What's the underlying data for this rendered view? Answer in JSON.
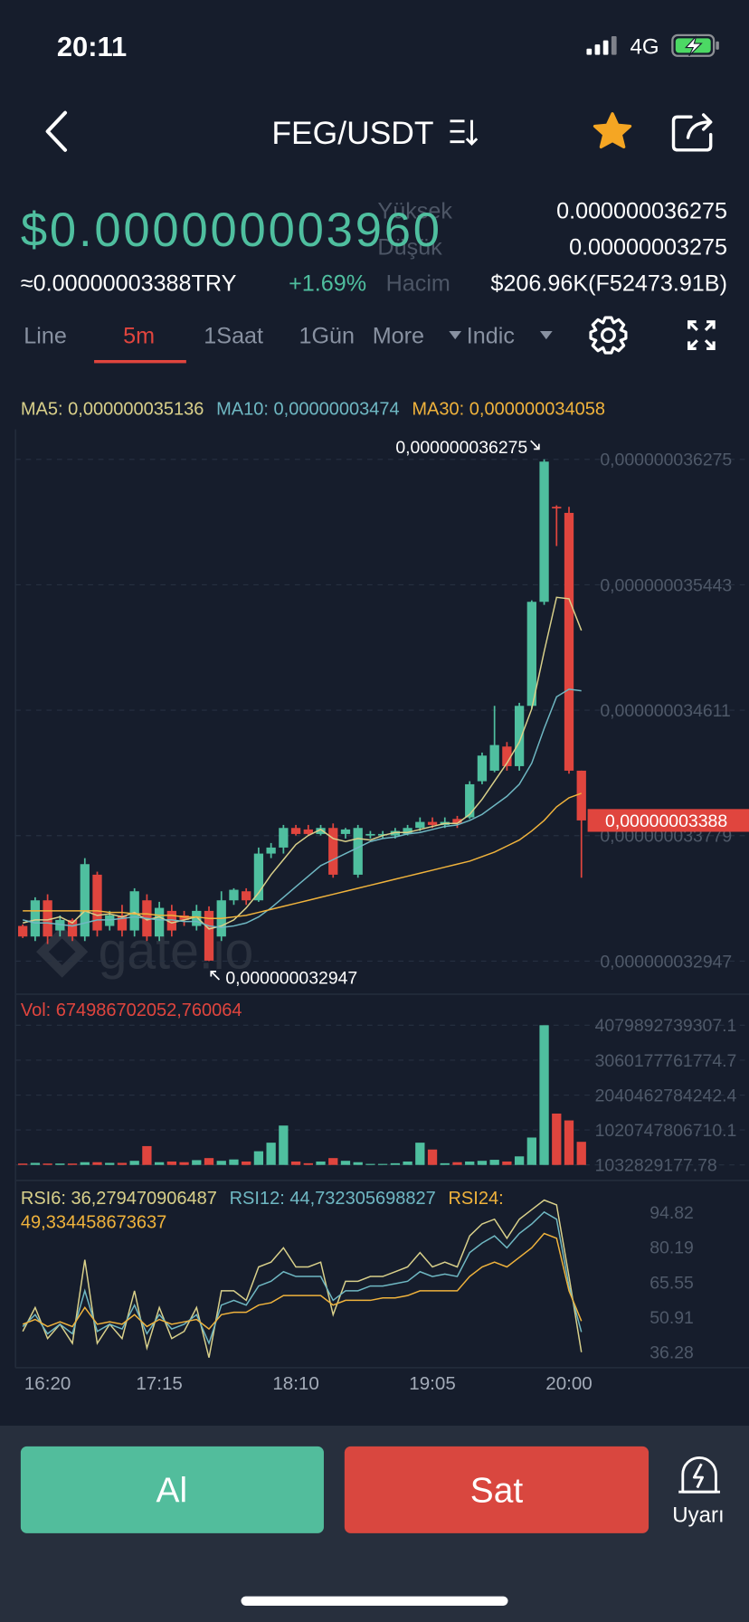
{
  "status_bar": {
    "time": "20:11",
    "network": "4G"
  },
  "header": {
    "pair": "FEG/USDT"
  },
  "ticker": {
    "price": "$0.000000003960",
    "price_try": "≈0.00000003388TRY",
    "change": "+1.69%",
    "stats": [
      {
        "label": "Yüksek",
        "value": "0.000000036275"
      },
      {
        "label": "Düşük",
        "value": "0.00000003275"
      },
      {
        "label": "Hacim",
        "value": "$206.96K(F52473.91B)"
      }
    ]
  },
  "tabs": [
    "Line",
    "5m",
    "1Saat",
    "1Gün",
    "More",
    "Indic"
  ],
  "watermark": "gate.io",
  "chart_data": [
    {
      "type": "candlestick",
      "open": [
        3.318e-08,
        3.311e-08,
        3.335e-08,
        3.315e-08,
        3.322e-08,
        3.311e-08,
        3.352e-08,
        3.318e-08,
        3.325e-08,
        3.315e-08,
        3.335e-08,
        3.311e-08,
        3.328e-08,
        3.325e-08,
        3.318e-08,
        3.328e-08,
        3.311e-08,
        3.335e-08,
        3.341e-08,
        3.335e-08,
        3.366e-08,
        3.37e-08,
        3.383e-08,
        3.382e-08,
        3.379e-08,
        3.383e-08,
        3.379e-08,
        3.352e-08,
        3.378e-08,
        3.378e-08,
        3.378e-08,
        3.379e-08,
        3.383e-08,
        3.387e-08,
        3.385e-08,
        3.389e-08,
        3.39e-08,
        3.414e-08,
        3.421e-08,
        3.437e-08,
        3.424e-08,
        3.464e-08,
        3.533e-08,
        3.596e-08,
        3.592e-08,
        3.421e-08
      ],
      "high": [
        3.319e-08,
        3.337e-08,
        3.339e-08,
        3.325e-08,
        3.323e-08,
        3.363e-08,
        3.354e-08,
        3.328e-08,
        3.332e-08,
        3.343e-08,
        3.339e-08,
        3.334e-08,
        3.332e-08,
        3.328e-08,
        3.332e-08,
        3.331e-08,
        3.341e-08,
        3.343e-08,
        3.343e-08,
        3.37e-08,
        3.373e-08,
        3.385e-08,
        3.385e-08,
        3.385e-08,
        3.385e-08,
        3.386e-08,
        3.383e-08,
        3.385e-08,
        3.381e-08,
        3.381e-08,
        3.383e-08,
        3.385e-08,
        3.39e-08,
        3.39e-08,
        3.39e-08,
        3.391e-08,
        3.414e-08,
        3.433e-08,
        3.464e-08,
        3.44e-08,
        3.466e-08,
        3.534e-08,
        3.6275e-08,
        3.597e-08,
        3.596e-08,
        3.421e-08
      ],
      "low": [
        3.31e-08,
        3.308e-08,
        3.306e-08,
        3.311e-08,
        3.308e-08,
        3.308e-08,
        3.311e-08,
        3.315e-08,
        3.311e-08,
        3.311e-08,
        3.308e-08,
        3.308e-08,
        3.311e-08,
        3.318e-08,
        3.315e-08,
        3.2947e-08,
        3.308e-08,
        3.332e-08,
        3.332e-08,
        3.334e-08,
        3.363e-08,
        3.366e-08,
        3.378e-08,
        3.378e-08,
        3.378e-08,
        3.35e-08,
        3.376e-08,
        3.35e-08,
        3.376e-08,
        3.376e-08,
        3.376e-08,
        3.378e-08,
        3.381e-08,
        3.383e-08,
        3.383e-08,
        3.383e-08,
        3.389e-08,
        3.412e-08,
        3.42e-08,
        3.421e-08,
        3.421e-08,
        3.462e-08,
        3.531e-08,
        3.57e-08,
        3.419e-08,
        3.35e-08
      ],
      "close": [
        3.311e-08,
        3.335e-08,
        3.311e-08,
        3.322e-08,
        3.311e-08,
        3.359e-08,
        3.315e-08,
        3.325e-08,
        3.315e-08,
        3.341e-08,
        3.311e-08,
        3.33e-08,
        3.315e-08,
        3.322e-08,
        3.328e-08,
        3.295e-08,
        3.335e-08,
        3.342e-08,
        3.335e-08,
        3.366e-08,
        3.37e-08,
        3.383e-08,
        3.379e-08,
        3.379e-08,
        3.383e-08,
        3.352e-08,
        3.382e-08,
        3.383e-08,
        3.379e-08,
        3.379e-08,
        3.381e-08,
        3.383e-08,
        3.387e-08,
        3.385e-08,
        3.387e-08,
        3.386e-08,
        3.412e-08,
        3.431e-08,
        3.438e-08,
        3.424e-08,
        3.464e-08,
        3.533e-08,
        3.626e-08,
        3.595e-08,
        3.421e-08,
        3.388e-08
      ],
      "up_color": "#4fbf9f",
      "down_color": "#e0453e",
      "series": [
        {
          "name": "MA5: 0,000000035136",
          "color": "#d9d08a",
          "values": [
            3.32e-08,
            3.322e-08,
            3.322e-08,
            3.324e-08,
            3.32e-08,
            3.328e-08,
            3.325e-08,
            3.326e-08,
            3.324e-08,
            3.327e-08,
            3.322e-08,
            3.324e-08,
            3.32e-08,
            3.322e-08,
            3.324e-08,
            3.316e-08,
            3.318e-08,
            3.322e-08,
            3.33e-08,
            3.34e-08,
            3.352e-08,
            3.362e-08,
            3.372e-08,
            3.378e-08,
            3.382e-08,
            3.376e-08,
            3.374e-08,
            3.376e-08,
            3.375e-08,
            3.378e-08,
            3.38e-08,
            3.38e-08,
            3.382e-08,
            3.384e-08,
            3.386e-08,
            3.386e-08,
            3.392e-08,
            3.402e-08,
            3.414e-08,
            3.426e-08,
            3.44e-08,
            3.462e-08,
            3.5e-08,
            3.536e-08,
            3.535e-08,
            3.514e-08
          ]
        },
        {
          "name": "MA10: 0,00000003474",
          "color": "#6fb8c3",
          "values": [
            3.322e-08,
            3.32e-08,
            3.32e-08,
            3.319e-08,
            3.318e-08,
            3.32e-08,
            3.322e-08,
            3.322e-08,
            3.323e-08,
            3.324e-08,
            3.323e-08,
            3.322e-08,
            3.322e-08,
            3.321e-08,
            3.321e-08,
            3.318e-08,
            3.317e-08,
            3.318e-08,
            3.32e-08,
            3.324e-08,
            3.33e-08,
            3.337e-08,
            3.344e-08,
            3.351e-08,
            3.358e-08,
            3.362e-08,
            3.366e-08,
            3.37e-08,
            3.374e-08,
            3.376e-08,
            3.377e-08,
            3.379e-08,
            3.38e-08,
            3.382e-08,
            3.384e-08,
            3.385e-08,
            3.388e-08,
            3.392e-08,
            3.398e-08,
            3.404e-08,
            3.412e-08,
            3.426e-08,
            3.449e-08,
            3.47e-08,
            3.475e-08,
            3.474e-08
          ]
        },
        {
          "name": "MA30: 0,000000034058",
          "color": "#f0b33c",
          "values": [
            3.328e-08,
            3.328e-08,
            3.328e-08,
            3.328e-08,
            3.328e-08,
            3.328e-08,
            3.328e-08,
            3.327e-08,
            3.327e-08,
            3.326e-08,
            3.326e-08,
            3.325e-08,
            3.325e-08,
            3.324e-08,
            3.324e-08,
            3.323e-08,
            3.323e-08,
            3.324e-08,
            3.325e-08,
            3.327e-08,
            3.329e-08,
            3.331e-08,
            3.333e-08,
            3.335e-08,
            3.337e-08,
            3.339e-08,
            3.341e-08,
            3.343e-08,
            3.345e-08,
            3.347e-08,
            3.349e-08,
            3.351e-08,
            3.353e-08,
            3.355e-08,
            3.357e-08,
            3.359e-08,
            3.361e-08,
            3.364e-08,
            3.367e-08,
            3.371e-08,
            3.375e-08,
            3.381e-08,
            3.388e-08,
            3.397e-08,
            3.403e-08,
            3.406e-08
          ]
        }
      ],
      "ylim": [
        3.2734e-08,
        3.6474e-08
      ],
      "yticks": [
        {
          "value": 3.6275e-08,
          "label": "0,000000036275"
        },
        {
          "value": 3.5443e-08,
          "label": "0,000000035443"
        },
        {
          "value": 3.4611e-08,
          "label": "0,000000034611"
        },
        {
          "value": 3.3779e-08,
          "label": "0,000000033779"
        },
        {
          "value": 3.2947e-08,
          "label": "0,000000032947"
        }
      ],
      "grid": true,
      "max_label": {
        "value": 3.6275e-08,
        "label": "0,000000036275"
      },
      "min_label": {
        "value": 3.2947e-08,
        "label": "0,000000032947"
      },
      "last_label": {
        "value": 3.388e-08,
        "label": "0,00000003388"
      }
    },
    {
      "type": "bar",
      "title": "Vol: 674986702052,760064",
      "values": [
        40000000000.0,
        60000000000.0,
        40000000000.0,
        40000000000.0,
        40000000000.0,
        80000000000.0,
        80000000000.0,
        60000000000.0,
        60000000000.0,
        120000000000.0,
        550000000000.0,
        80000000000.0,
        100000000000.0,
        80000000000.0,
        140000000000.0,
        200000000000.0,
        120000000000.0,
        160000000000.0,
        100000000000.0,
        400000000000.0,
        650000000000.0,
        1150000000000.0,
        100000000000.0,
        50000000000.0,
        100000000000.0,
        200000000000.0,
        120000000000.0,
        80000000000.0,
        30000000000.0,
        30000000000.0,
        50000000000.0,
        100000000000.0,
        650000000000.0,
        450000000000.0,
        50000000000.0,
        80000000000.0,
        100000000000.0,
        120000000000.0,
        150000000000.0,
        100000000000.0,
        250000000000.0,
        800000000000.0,
        4079892700000.0,
        1500000000000.0,
        1300000000000.0,
        674986702052.76
      ],
      "ylim": [
        0,
        4925000000000.0
      ],
      "yticks": [
        4079892739307.1,
        3060177761774.7,
        2040462784242.4,
        1020747806710.1,
        1032829177.78
      ],
      "grid": true
    },
    {
      "type": "line",
      "categories": [
        null,
        null,
        "16:20",
        null,
        null,
        null,
        null,
        null,
        null,
        null,
        null,
        "17:15",
        null,
        null,
        null,
        null,
        null,
        null,
        null,
        null,
        null,
        null,
        "18:10",
        null,
        null,
        null,
        null,
        null,
        null,
        null,
        null,
        null,
        null,
        "19:05",
        null,
        null,
        null,
        null,
        null,
        null,
        null,
        null,
        null,
        null,
        "20:00",
        null
      ],
      "series": [
        {
          "name": "RSI6: 36,279470906487",
          "color": "#d9d08a",
          "values": [
            45,
            55,
            42,
            48,
            40,
            75,
            40,
            48,
            42,
            62,
            38,
            55,
            42,
            45,
            55,
            34,
            62,
            62,
            58,
            72,
            74,
            80,
            72,
            72,
            74,
            52,
            66,
            66,
            68,
            68,
            70,
            72,
            78,
            72,
            74,
            72,
            85,
            90,
            92,
            84,
            92,
            96,
            100,
            98,
            68,
            36.28
          ]
        },
        {
          "name": "RSI12: 44,732305698827",
          "color": "#6fb8c3",
          "values": [
            47,
            52,
            44,
            48,
            44,
            62,
            45,
            48,
            46,
            56,
            44,
            52,
            46,
            48,
            52,
            40,
            56,
            58,
            56,
            64,
            66,
            70,
            68,
            68,
            68,
            58,
            62,
            62,
            64,
            64,
            65,
            66,
            70,
            68,
            69,
            68,
            78,
            82,
            85,
            80,
            86,
            90,
            95,
            92,
            64,
            44.73
          ]
        },
        {
          "name": "RSI24: 49,334458673637",
          "color": "#f0b33c",
          "values": [
            48,
            50,
            47,
            49,
            47,
            55,
            48,
            49,
            48,
            52,
            47,
            50,
            48,
            49,
            50,
            46,
            52,
            53,
            53,
            56,
            57,
            60,
            60,
            60,
            60,
            56,
            58,
            58,
            58,
            59,
            59,
            60,
            62,
            62,
            62,
            62,
            68,
            72,
            74,
            72,
            76,
            80,
            86,
            84,
            62,
            49.33
          ]
        }
      ],
      "ylim": [
        30.64,
        105.2
      ],
      "yticks": [
        94.82,
        80.19,
        65.55,
        50.91,
        36.28
      ],
      "grid": false
    }
  ],
  "actions": {
    "buy": "Al",
    "sell": "Sat",
    "alert": "Uyarı"
  }
}
